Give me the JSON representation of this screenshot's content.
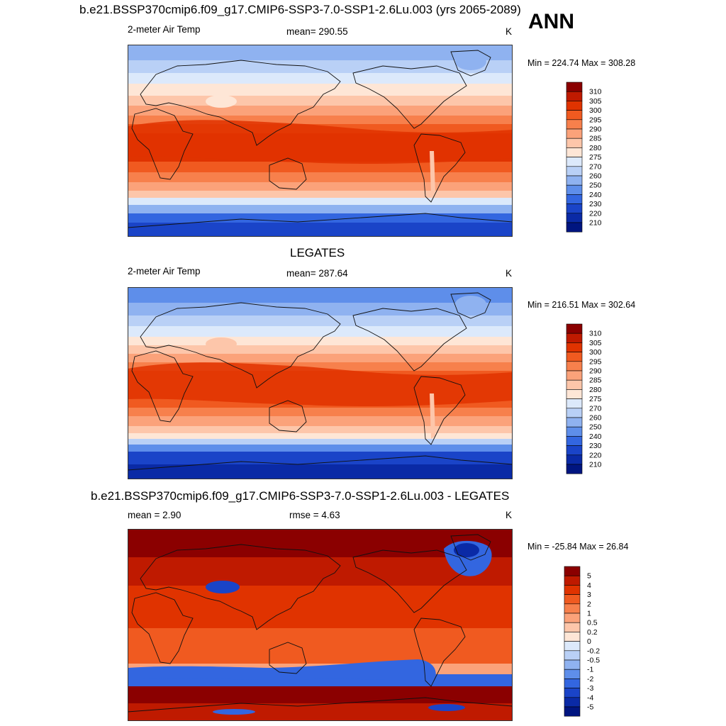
{
  "figure": {
    "season_label": "ANN",
    "panels": [
      {
        "title": "b.e21.BSSP370cmip6.f09_g17.CMIP6-SSP3-7.0-SSP1-2.6Lu.003 (yrs 2065-2089)",
        "left_label": "2-meter Air Temp",
        "center_label": "mean= 290.55",
        "units": "K",
        "minmax": "Min = 224.74 Max = 308.28",
        "variant": "model"
      },
      {
        "title": "LEGATES",
        "left_label": "2-meter Air Temp",
        "center_label": "mean= 287.64",
        "units": "K",
        "minmax": "Min = 216.51 Max = 302.64",
        "variant": "obs"
      },
      {
        "title": "b.e21.BSSP370cmip6.f09_g17.CMIP6-SSP3-7.0-SSP1-2.6Lu.003 - LEGATES",
        "left_label": "mean =   2.90",
        "center_label": "rmse =   4.63",
        "units": "K",
        "minmax": "Min = -25.84 Max =  26.84",
        "variant": "diff"
      }
    ]
  },
  "colorbars": {
    "abs": {
      "labels": [
        "310",
        "305",
        "300",
        "295",
        "290",
        "285",
        "280",
        "275",
        "270",
        "260",
        "250",
        "240",
        "230",
        "220",
        "210"
      ],
      "colors": [
        "#8b0000",
        "#bf1a00",
        "#e03300",
        "#f05a20",
        "#f7804c",
        "#fba27a",
        "#fdc6aa",
        "#fee6d6",
        "#dce9fb",
        "#b9d0f6",
        "#8fb2f0",
        "#5e8eea",
        "#3366e0",
        "#1a44c8",
        "#0a2aa6",
        "#001580"
      ]
    },
    "diff": {
      "labels": [
        "5",
        "4",
        "3",
        "2",
        "1",
        "0.5",
        "0.2",
        "0",
        "-0.2",
        "-0.5",
        "-1",
        "-2",
        "-3",
        "-4",
        "-5"
      ],
      "colors": [
        "#8b0000",
        "#bf1a00",
        "#e03300",
        "#f05a20",
        "#f7804c",
        "#fba27a",
        "#fdc6aa",
        "#fee6d6",
        "#dce9fb",
        "#b9d0f6",
        "#8fb2f0",
        "#5e8eea",
        "#3366e0",
        "#1a44c8",
        "#0a2aa6",
        "#001580"
      ]
    }
  }
}
